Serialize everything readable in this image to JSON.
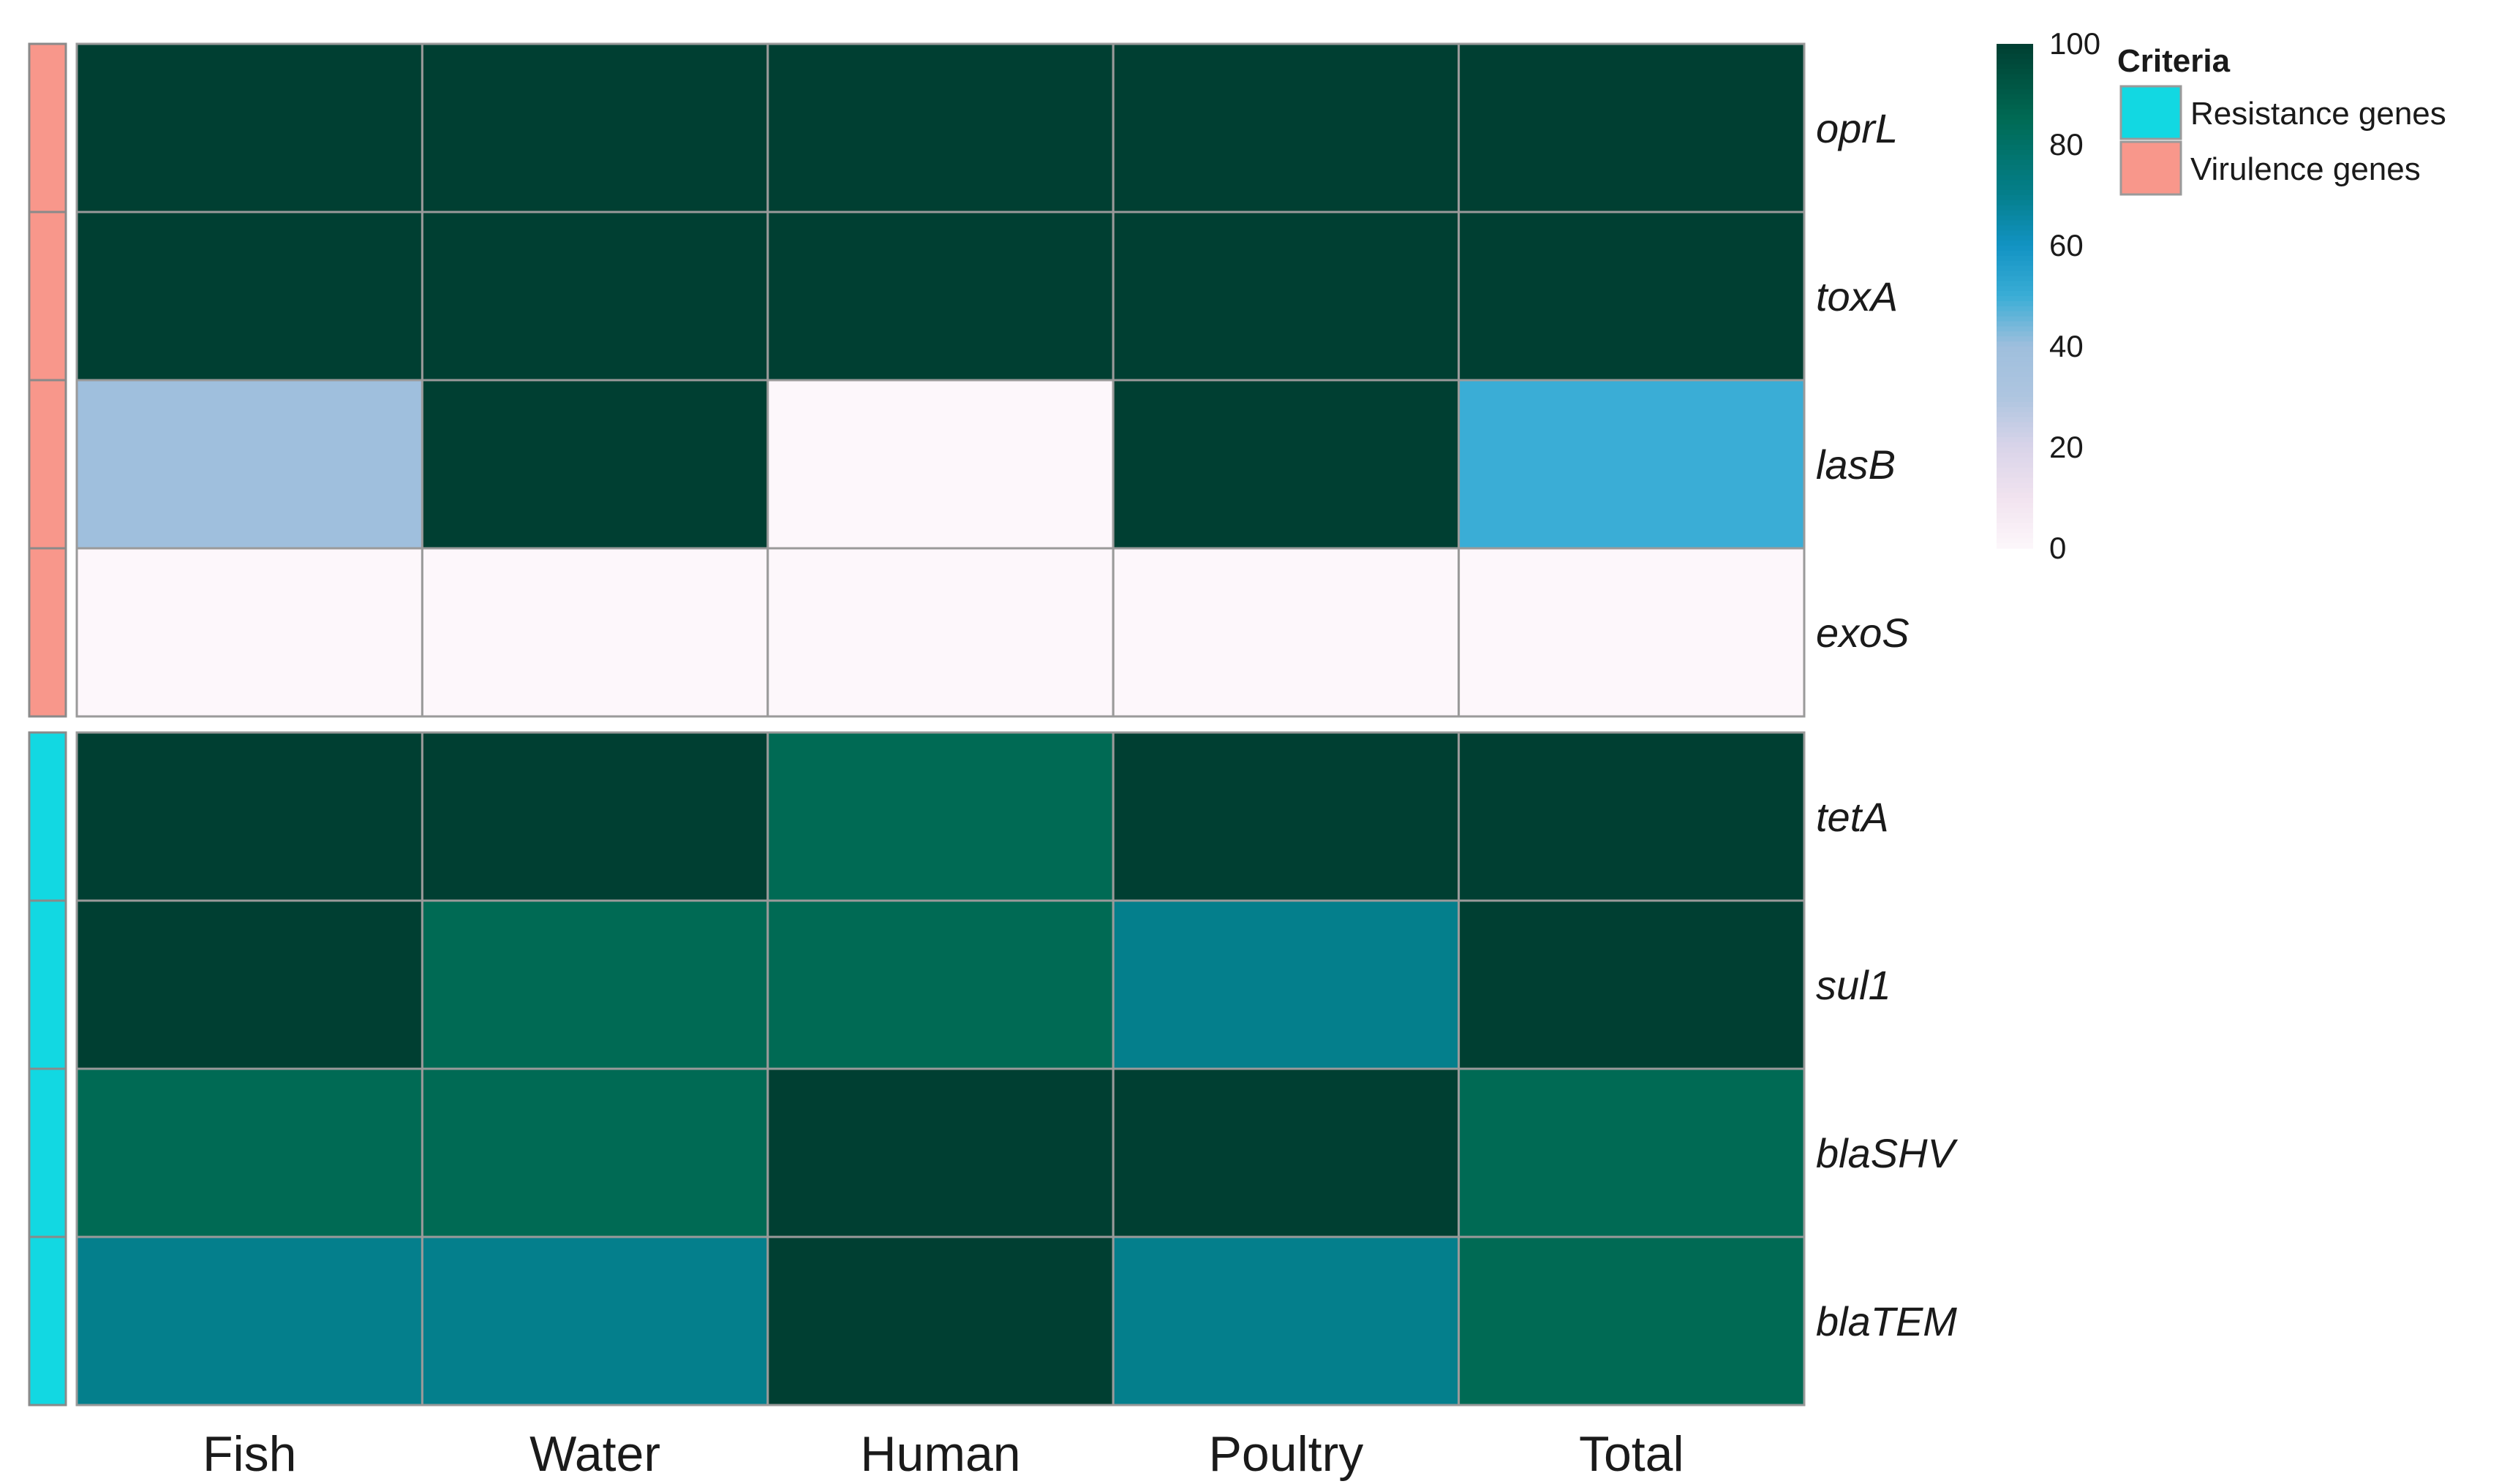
{
  "chart_data": {
    "type": "heatmap",
    "columns": [
      "Fish",
      "Water",
      "Human",
      "Poultry",
      "Total"
    ],
    "groups": [
      {
        "criteria": "Virulence genes",
        "color": "#f8978b",
        "rows": [
          {
            "gene": "oprL",
            "values": [
              100,
              100,
              100,
              100,
              100
            ]
          },
          {
            "gene": "toxA",
            "values": [
              100,
              100,
              100,
              100,
              100
            ]
          },
          {
            "gene": "lasB",
            "values": [
              40,
              100,
              0,
              100,
              50
            ]
          },
          {
            "gene": "exoS",
            "values": [
              0,
              0,
              0,
              0,
              0
            ]
          }
        ]
      },
      {
        "criteria": "Resistance genes",
        "color": "#12d8e2",
        "rows": [
          {
            "gene": "tetA",
            "values": [
              100,
              100,
              85,
              100,
              100
            ]
          },
          {
            "gene": "sul1",
            "values": [
              100,
              85,
              85,
              70,
              100
            ]
          },
          {
            "gene": "blaSHV",
            "values": [
              85,
              85,
              100,
              100,
              85
            ]
          },
          {
            "gene": "blaTEM",
            "values": [
              70,
              70,
              100,
              70,
              85
            ]
          }
        ]
      }
    ],
    "color_scale": {
      "range": [
        0,
        100
      ],
      "ticks": [
        0,
        20,
        40,
        60,
        80,
        100
      ],
      "stops": [
        {
          "value": 0,
          "color": "#fdf7fb"
        },
        {
          "value": 10,
          "color": "#f1e3ef"
        },
        {
          "value": 20,
          "color": "#d9d4e9"
        },
        {
          "value": 30,
          "color": "#aec5e0"
        },
        {
          "value": 40,
          "color": "#9fbfdd"
        },
        {
          "value": 50,
          "color": "#3aadd6"
        },
        {
          "value": 60,
          "color": "#1293c3"
        },
        {
          "value": 70,
          "color": "#047f8c"
        },
        {
          "value": 85,
          "color": "#006a54"
        },
        {
          "value": 100,
          "color": "#003f32"
        }
      ]
    },
    "legend": {
      "title": "Criteria",
      "items": [
        {
          "label": "Resistance genes",
          "color": "#12d8e2"
        },
        {
          "label": "Virulence genes",
          "color": "#f8978b"
        }
      ]
    },
    "grid": true
  }
}
